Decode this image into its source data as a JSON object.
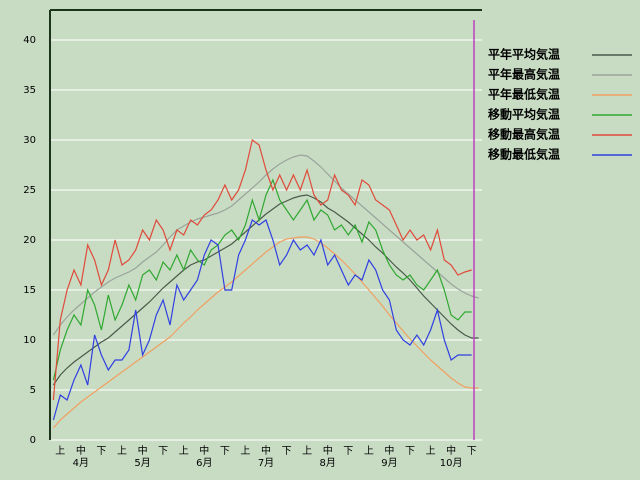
{
  "chart_data": {
    "type": "line",
    "categories": [
      null,
      "上",
      null,
      null,
      "中",
      null,
      null,
      "下",
      null,
      null,
      "上",
      null,
      null,
      "中",
      null,
      null,
      "下",
      null,
      null,
      "上",
      null,
      null,
      "中",
      null,
      null,
      "下",
      null,
      null,
      "上",
      null,
      null,
      "中",
      null,
      null,
      "下",
      null,
      null,
      "上",
      null,
      null,
      "中",
      null,
      null,
      "下",
      null,
      null,
      "上",
      null,
      null,
      "中",
      null,
      null,
      "下",
      null,
      null,
      "上",
      null,
      null,
      "中",
      null,
      null,
      "下",
      null
    ],
    "months": [
      "4月",
      "5月",
      "6月",
      "7月",
      "8月",
      "9月",
      "10月"
    ],
    "ylim": [
      0,
      43
    ],
    "yticks": [
      0,
      5,
      10,
      15,
      20,
      25,
      30,
      35,
      40
    ],
    "grid": true,
    "series": [
      {
        "name": "平年平均気温",
        "color": "#4a5a4a",
        "values": [
          5.5,
          6.5,
          7.2,
          7.8,
          8.3,
          8.8,
          9.3,
          9.8,
          10.2,
          10.8,
          11.4,
          12,
          12.6,
          13.2,
          13.8,
          14.5,
          15.2,
          15.8,
          16.4,
          17,
          17.5,
          17.8,
          18,
          18.4,
          18.8,
          19.2,
          19.6,
          20.2,
          20.8,
          21.4,
          22,
          22.6,
          23.1,
          23.6,
          23.9,
          24.2,
          24.4,
          24.5,
          24.2,
          23.8,
          23.2,
          22.8,
          22.3,
          21.8,
          21.2,
          20.6,
          20,
          19.3,
          18.7,
          18,
          17.3,
          16.7,
          16,
          15.2,
          14.4,
          13.7,
          13,
          12.3,
          11.6,
          11,
          10.5,
          10.2,
          10.2
        ]
      },
      {
        "name": "平年最高気温",
        "color": "#9aa49a",
        "values": [
          10.5,
          11.5,
          12.3,
          13,
          13.6,
          14.2,
          14.8,
          15.3,
          15.8,
          16.2,
          16.5,
          16.8,
          17.2,
          17.8,
          18.3,
          18.8,
          19.5,
          20.3,
          21,
          21.4,
          21.8,
          22.1,
          22.3,
          22.5,
          22.7,
          23,
          23.4,
          24,
          24.6,
          25.2,
          25.8,
          26.5,
          27.1,
          27.6,
          28,
          28.3,
          28.5,
          28.4,
          27.9,
          27.3,
          26.6,
          25.9,
          25.2,
          24.6,
          24,
          23.4,
          22.8,
          22.2,
          21.6,
          21,
          20.4,
          19.8,
          19.2,
          18.6,
          18,
          17.4,
          16.8,
          16.2,
          15.6,
          15.1,
          14.7,
          14.4,
          14.2
        ]
      },
      {
        "name": "平年最低気温",
        "color": "#f0a060",
        "values": [
          1.2,
          2,
          2.6,
          3.2,
          3.8,
          4.3,
          4.8,
          5.3,
          5.8,
          6.3,
          6.8,
          7.3,
          7.8,
          8.3,
          8.8,
          9.3,
          9.8,
          10.3,
          11,
          11.7,
          12.3,
          13,
          13.6,
          14.2,
          14.8,
          15.3,
          15.8,
          16.4,
          17,
          17.6,
          18.2,
          18.8,
          19.3,
          19.8,
          20.1,
          20.2,
          20.3,
          20.3,
          20.1,
          19.7,
          19.2,
          18.6,
          18,
          17.3,
          16.6,
          15.8,
          15,
          14.2,
          13.4,
          12.5,
          11.7,
          10.9,
          10.1,
          9.4,
          8.7,
          8,
          7.4,
          6.8,
          6.2,
          5.7,
          5.3,
          5.2,
          5.2
        ]
      },
      {
        "name": "移動平均気温",
        "color": "#30a830",
        "values": [
          6,
          9,
          11,
          12.5,
          11.5,
          15,
          13.5,
          11,
          14.5,
          12,
          13.5,
          15.5,
          14,
          16.5,
          17,
          16,
          17.8,
          17,
          18.5,
          17,
          19,
          18,
          17.5,
          19,
          19.5,
          20.5,
          21,
          20,
          21.5,
          24,
          22,
          24.5,
          26,
          24,
          23,
          22,
          23,
          24,
          22,
          23,
          22.5,
          21,
          21.5,
          20.5,
          21.5,
          19.8,
          21.8,
          21,
          19,
          17.5,
          16.5,
          16,
          16.5,
          15.5,
          15,
          16,
          17,
          15,
          12.5,
          12,
          12.8,
          12.8,
          null
        ]
      },
      {
        "name": "移動最高気温",
        "color": "#e04a3a",
        "values": [
          4,
          12,
          15,
          17,
          15.5,
          19.5,
          18,
          15.5,
          17,
          20,
          17.5,
          18,
          19,
          21,
          20,
          22,
          21,
          19,
          21,
          20.5,
          22,
          21.5,
          22.5,
          23,
          24,
          25.5,
          24,
          25,
          27,
          30,
          29.5,
          27,
          25,
          26.5,
          25,
          26.5,
          25,
          27,
          24.5,
          23.5,
          24,
          26.5,
          25,
          24.5,
          23.5,
          26,
          25.5,
          24,
          23.5,
          23,
          21.5,
          20,
          21,
          20,
          20.5,
          19,
          21,
          18,
          17.5,
          16.5,
          16.8,
          17,
          null
        ]
      },
      {
        "name": "移動最低気温",
        "color": "#3040e0",
        "values": [
          2,
          4.5,
          4,
          6,
          7.5,
          5.5,
          10.5,
          8.5,
          7,
          8,
          8,
          9,
          13,
          8.5,
          10,
          12.5,
          14,
          11.5,
          15.5,
          14,
          15,
          16,
          18.5,
          20,
          19.5,
          15,
          15,
          18.5,
          20,
          22,
          21.5,
          22,
          20,
          17.5,
          18.5,
          20,
          19,
          19.5,
          18.5,
          20,
          17.5,
          18.5,
          17,
          15.5,
          16.5,
          16,
          18,
          17,
          15,
          14,
          11,
          10,
          9.5,
          10.5,
          9.5,
          11,
          13,
          10,
          8,
          8.5,
          8.5,
          8.5,
          null
        ]
      }
    ]
  }
}
